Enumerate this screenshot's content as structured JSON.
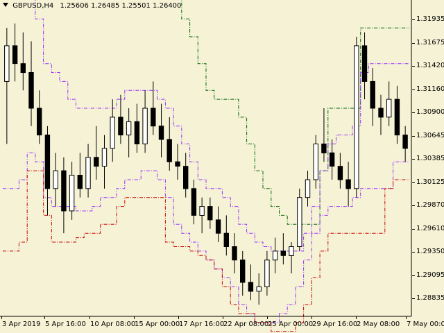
{
  "header": {
    "symbol": "GBPUSD,H4",
    "ohlc": "1.25606 1.26485 1.25501 1.26400"
  },
  "colors": {
    "background": "#f5f2d5",
    "bull_candle": "#ffffff",
    "bear_candle": "#000000",
    "outer_band": "#006400",
    "middle_band": "#9a30ff",
    "inner_band": "#cc0000"
  },
  "chart_data": {
    "type": "candlestick",
    "title": "",
    "symbol": "GBPUSD",
    "timeframe": "H4",
    "y_ticks": [
      "1.31935",
      "1.31675",
      "1.31420",
      "1.31160",
      "1.30900",
      "1.30645",
      "1.30385",
      "1.30125",
      "1.29870",
      "1.29610",
      "1.29350",
      "1.29095",
      "1.28835"
    ],
    "x_ticks": [
      "3 Apr 2019",
      "5 Apr 16:00",
      "10 Apr 08:00",
      "15 Apr 00:00",
      "17 Apr 16:00",
      "22 Apr 08:00",
      "25 Apr 00:00",
      "29 Apr 16:00",
      "2 May 08:00",
      "7 May 00:00"
    ],
    "ylim": [
      1.287,
      1.3215
    ],
    "candles": [
      [
        1.313,
        1.319,
        1.306,
        1.317
      ],
      [
        1.317,
        1.3195,
        1.313,
        1.315
      ],
      [
        1.315,
        1.3185,
        1.312,
        1.314
      ],
      [
        1.314,
        1.3175,
        1.308,
        1.31
      ],
      [
        1.31,
        1.312,
        1.306,
        1.307
      ],
      [
        1.307,
        1.308,
        1.298,
        1.301
      ],
      [
        1.301,
        1.305,
        1.299,
        1.303
      ],
      [
        1.303,
        1.3045,
        1.296,
        1.2985
      ],
      [
        1.2985,
        1.304,
        1.2975,
        1.3025
      ],
      [
        1.3025,
        1.305,
        1.3,
        1.301
      ],
      [
        1.301,
        1.306,
        1.3,
        1.3045
      ],
      [
        1.3045,
        1.308,
        1.302,
        1.3035
      ],
      [
        1.3035,
        1.307,
        1.301,
        1.3055
      ],
      [
        1.3055,
        1.311,
        1.304,
        1.309
      ],
      [
        1.309,
        1.3115,
        1.306,
        1.307
      ],
      [
        1.307,
        1.31,
        1.3045,
        1.3085
      ],
      [
        1.3085,
        1.3105,
        1.305,
        1.306
      ],
      [
        1.306,
        1.312,
        1.305,
        1.31
      ],
      [
        1.31,
        1.313,
        1.307,
        1.308
      ],
      [
        1.308,
        1.3105,
        1.3045,
        1.3065
      ],
      [
        1.3065,
        1.309,
        1.303,
        1.304
      ],
      [
        1.304,
        1.306,
        1.302,
        1.3035
      ],
      [
        1.3035,
        1.305,
        1.3,
        1.301
      ],
      [
        1.301,
        1.302,
        1.297,
        1.298
      ],
      [
        1.298,
        1.3,
        1.296,
        1.299
      ],
      [
        1.299,
        1.3,
        1.2965,
        1.2975
      ],
      [
        1.2975,
        1.299,
        1.295,
        1.296
      ],
      [
        1.296,
        1.298,
        1.2935,
        1.2945
      ],
      [
        1.2945,
        1.296,
        1.2915,
        1.293
      ],
      [
        1.293,
        1.294,
        1.289,
        1.2905
      ],
      [
        1.2905,
        1.2925,
        1.2885,
        1.2895
      ],
      [
        1.2895,
        1.2915,
        1.288,
        1.29
      ],
      [
        1.29,
        1.294,
        1.289,
        1.293
      ],
      [
        1.293,
        1.2955,
        1.2915,
        1.294
      ],
      [
        1.294,
        1.296,
        1.2925,
        1.2935
      ],
      [
        1.2935,
        1.295,
        1.2915,
        1.2945
      ],
      [
        1.2945,
        1.301,
        1.294,
        1.3
      ],
      [
        1.3,
        1.303,
        1.299,
        1.302
      ],
      [
        1.302,
        1.307,
        1.301,
        1.306
      ],
      [
        1.306,
        1.31,
        1.304,
        1.305
      ],
      [
        1.305,
        1.3065,
        1.302,
        1.3035
      ],
      [
        1.3035,
        1.305,
        1.301,
        1.302
      ],
      [
        1.302,
        1.304,
        1.299,
        1.301
      ],
      [
        1.301,
        1.318,
        1.3,
        1.317
      ],
      [
        1.317,
        1.3185,
        1.311,
        1.313
      ],
      [
        1.313,
        1.3145,
        1.308,
        1.31
      ],
      [
        1.31,
        1.3115,
        1.307,
        1.309
      ],
      [
        1.309,
        1.313,
        1.308,
        1.311
      ],
      [
        1.311,
        1.3125,
        1.306,
        1.307
      ],
      [
        1.307,
        1.308,
        1.304,
        1.3055
      ]
    ],
    "bands": {
      "outer_upper": [
        1.329,
        1.329,
        1.329,
        1.329,
        1.325,
        1.325,
        1.325,
        1.325,
        1.325,
        1.325,
        1.325,
        1.325,
        1.325,
        1.325,
        1.325,
        1.325,
        1.325,
        1.325,
        1.325,
        1.325,
        1.325,
        1.323,
        1.32,
        1.318,
        1.315,
        1.312,
        1.311,
        1.311,
        1.311,
        1.309,
        1.306,
        1.303,
        1.301,
        1.299,
        1.298,
        1.297,
        1.297,
        1.297,
        1.297,
        1.303,
        1.31,
        1.31,
        1.31,
        1.31,
        1.319,
        1.319,
        1.319,
        1.319,
        1.319,
        1.319
      ],
      "mid_upper": [
        1.325,
        1.325,
        1.325,
        1.325,
        1.32,
        1.315,
        1.314,
        1.313,
        1.311,
        1.31,
        1.31,
        1.31,
        1.31,
        1.31,
        1.311,
        1.312,
        1.312,
        1.312,
        1.312,
        1.311,
        1.31,
        1.308,
        1.306,
        1.304,
        1.302,
        1.301,
        1.301,
        1.3,
        1.299,
        1.297,
        1.296,
        1.295,
        1.2945,
        1.294,
        1.294,
        1.294,
        1.294,
        1.296,
        1.299,
        1.303,
        1.306,
        1.307,
        1.307,
        1.308,
        1.314,
        1.315,
        1.315,
        1.315,
        1.315,
        1.315
      ],
      "mid_lower": [
        1.301,
        1.301,
        1.302,
        1.305,
        1.304,
        1.3,
        1.299,
        1.299,
        1.299,
        1.2985,
        1.2985,
        1.299,
        1.3,
        1.3,
        1.301,
        1.302,
        1.302,
        1.303,
        1.303,
        1.302,
        1.3,
        1.297,
        1.296,
        1.295,
        1.294,
        1.293,
        1.292,
        1.291,
        1.29,
        1.288,
        1.287,
        1.286,
        1.286,
        1.286,
        1.287,
        1.288,
        1.29,
        1.293,
        1.296,
        1.298,
        1.299,
        1.299,
        1.299,
        1.3,
        1.301,
        1.301,
        1.301,
        1.301,
        1.304,
        1.304
      ],
      "inner_lower": [
        1.294,
        1.294,
        1.295,
        1.303,
        1.303,
        1.298,
        1.295,
        1.295,
        1.295,
        1.2955,
        1.296,
        1.296,
        1.297,
        1.297,
        1.299,
        1.3,
        1.3,
        1.3,
        1.3,
        1.3,
        1.295,
        1.2945,
        1.2945,
        1.294,
        1.2935,
        1.293,
        1.292,
        1.29,
        1.288,
        1.287,
        1.287,
        1.286,
        1.286,
        1.285,
        1.285,
        1.285,
        1.286,
        1.288,
        1.291,
        1.294,
        1.296,
        1.296,
        1.296,
        1.296,
        1.296,
        1.296,
        1.296,
        1.301,
        1.302,
        1.302
      ]
    }
  }
}
